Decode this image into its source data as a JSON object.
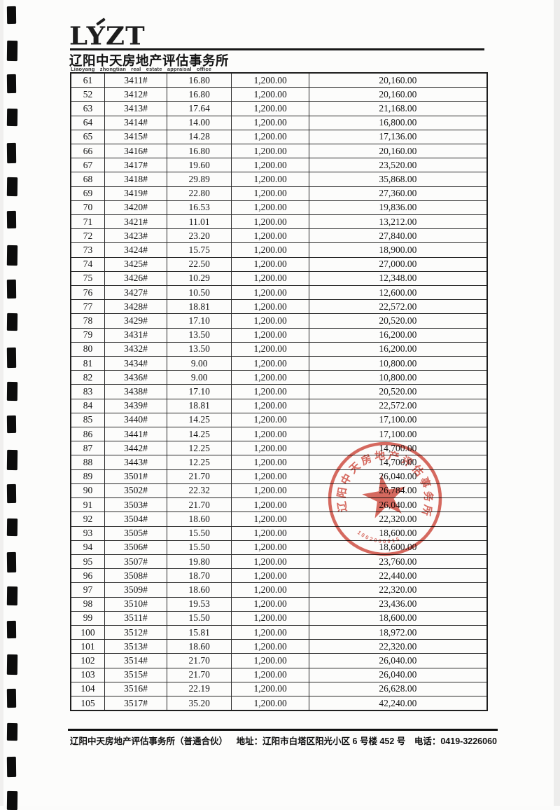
{
  "header": {
    "logo_text": "LYZT",
    "company_name_cn": "辽阳中天房地产评估事务所",
    "company_name_en": "Liaoyang zhongtian real estate appraisal office"
  },
  "table": {
    "fields": [
      "row_number",
      "unit_number",
      "area",
      "unit_price",
      "total_price"
    ],
    "rows": [
      [
        "61",
        "3411#",
        "16.80",
        "1,200.00",
        "20,160.00"
      ],
      [
        "52",
        "3412#",
        "16.80",
        "1,200.00",
        "20,160.00"
      ],
      [
        "63",
        "3413#",
        "17.64",
        "1,200.00",
        "21,168.00"
      ],
      [
        "64",
        "3414#",
        "14.00",
        "1,200.00",
        "16,800.00"
      ],
      [
        "65",
        "3415#",
        "14.28",
        "1,200.00",
        "17,136.00"
      ],
      [
        "66",
        "3416#",
        "16.80",
        "1,200.00",
        "20,160.00"
      ],
      [
        "67",
        "3417#",
        "19.60",
        "1,200.00",
        "23,520.00"
      ],
      [
        "68",
        "3418#",
        "29.89",
        "1,200.00",
        "35,868.00"
      ],
      [
        "69",
        "3419#",
        "22.80",
        "1,200.00",
        "27,360.00"
      ],
      [
        "70",
        "3420#",
        "16.53",
        "1,200.00",
        "19,836.00"
      ],
      [
        "71",
        "3421#",
        "11.01",
        "1,200.00",
        "13,212.00"
      ],
      [
        "72",
        "3423#",
        "23.20",
        "1,200.00",
        "27,840.00"
      ],
      [
        "73",
        "3424#",
        "15.75",
        "1,200.00",
        "18,900.00"
      ],
      [
        "74",
        "3425#",
        "22.50",
        "1,200.00",
        "27,000.00"
      ],
      [
        "75",
        "3426#",
        "10.29",
        "1,200.00",
        "12,348.00"
      ],
      [
        "76",
        "3427#",
        "10.50",
        "1,200.00",
        "12,600.00"
      ],
      [
        "77",
        "3428#",
        "18.81",
        "1,200.00",
        "22,572.00"
      ],
      [
        "78",
        "3429#",
        "17.10",
        "1,200.00",
        "20,520.00"
      ],
      [
        "79",
        "3431#",
        "13.50",
        "1,200.00",
        "16,200.00"
      ],
      [
        "80",
        "3432#",
        "13.50",
        "1,200.00",
        "16,200.00"
      ],
      [
        "81",
        "3434#",
        "9.00",
        "1,200.00",
        "10,800.00"
      ],
      [
        "82",
        "3436#",
        "9.00",
        "1,200.00",
        "10,800.00"
      ],
      [
        "83",
        "3438#",
        "17.10",
        "1,200.00",
        "20,520.00"
      ],
      [
        "84",
        "3439#",
        "18.81",
        "1,200.00",
        "22,572.00"
      ],
      [
        "85",
        "3440#",
        "14.25",
        "1,200.00",
        "17,100.00"
      ],
      [
        "86",
        "3441#",
        "14.25",
        "1,200.00",
        "17,100.00"
      ],
      [
        "87",
        "3442#",
        "12.25",
        "1,200.00",
        "14,700.00"
      ],
      [
        "88",
        "3443#",
        "12.25",
        "1,200.00",
        "14,700.00"
      ],
      [
        "89",
        "3501#",
        "21.70",
        "1,200.00",
        "26,040.00"
      ],
      [
        "90",
        "3502#",
        "22.32",
        "1,200.00",
        "26,784.00"
      ],
      [
        "91",
        "3503#",
        "21.70",
        "1,200.00",
        "26,040.00"
      ],
      [
        "92",
        "3504#",
        "18.60",
        "1,200.00",
        "22,320.00"
      ],
      [
        "93",
        "3505#",
        "15.50",
        "1,200.00",
        "18,600.00"
      ],
      [
        "94",
        "3506#",
        "15.50",
        "1,200.00",
        "18,600.00"
      ],
      [
        "95",
        "3507#",
        "19.80",
        "1,200.00",
        "23,760.00"
      ],
      [
        "96",
        "3508#",
        "18.70",
        "1,200.00",
        "22,440.00"
      ],
      [
        "97",
        "3509#",
        "18.60",
        "1,200.00",
        "22,320.00"
      ],
      [
        "98",
        "3510#",
        "19.53",
        "1,200.00",
        "23,436.00"
      ],
      [
        "99",
        "3511#",
        "15.50",
        "1,200.00",
        "18,600.00"
      ],
      [
        "100",
        "3512#",
        "15.81",
        "1,200.00",
        "18,972.00"
      ],
      [
        "101",
        "3513#",
        "18.60",
        "1,200.00",
        "22,320.00"
      ],
      [
        "102",
        "3514#",
        "21.70",
        "1,200.00",
        "26,040.00"
      ],
      [
        "103",
        "3515#",
        "21.70",
        "1,200.00",
        "26,040.00"
      ],
      [
        "104",
        "3516#",
        "22.19",
        "1,200.00",
        "26,628.00"
      ],
      [
        "105",
        "3517#",
        "35.20",
        "1,200.00",
        "42,240.00"
      ]
    ]
  },
  "stamp": {
    "arc_text": "辽阳中天房地产评估事务所",
    "serial": "1002000015",
    "color": "#cf4538"
  },
  "footer": {
    "company": "辽阳中天房地产评估事务所（普通合伙）",
    "address": "地址：辽阳市白塔区阳光小区 6 号楼 452 号",
    "phone": "电话：0419-3226060"
  },
  "artifacts": {
    "binding_marks_count": 24
  }
}
